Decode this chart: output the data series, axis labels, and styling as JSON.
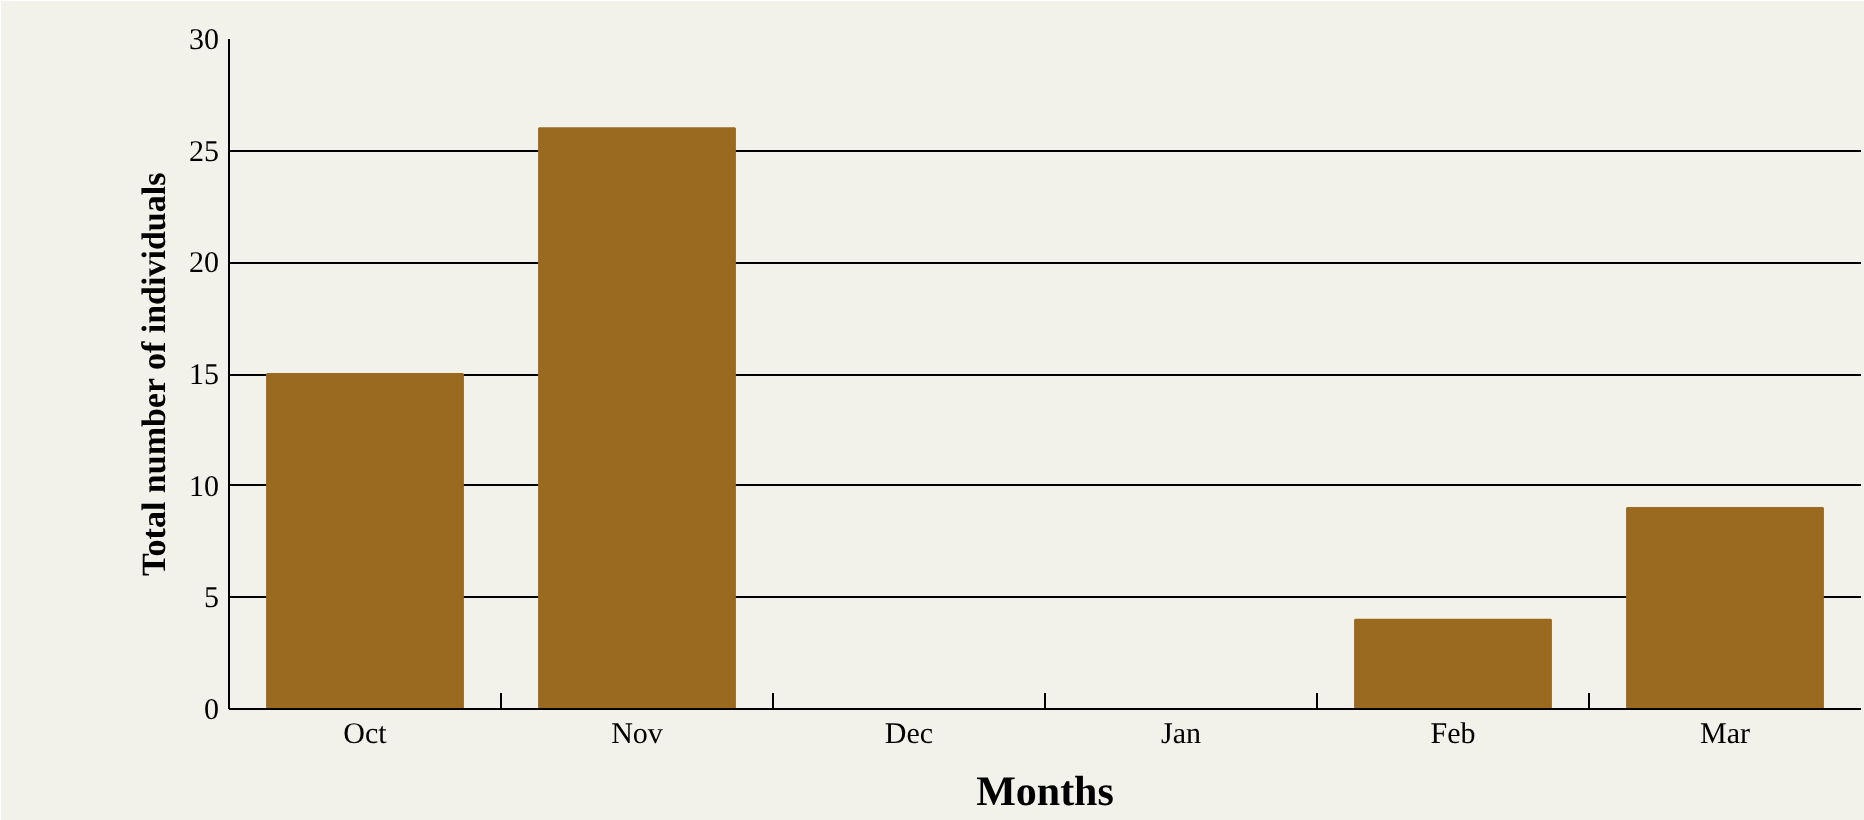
{
  "chart_data": {
    "type": "bar",
    "xlabel": "Months",
    "ylabel": "Total number of individuals",
    "categories": [
      "Oct",
      "Nov",
      "Dec",
      "Jan",
      "Feb",
      "Mar"
    ],
    "values": [
      15,
      26,
      0,
      0,
      4,
      9
    ],
    "color": "#996a1f",
    "ylim": [
      0,
      30
    ],
    "yticks": [
      0,
      5,
      10,
      15,
      20,
      25,
      30
    ],
    "grid": "y"
  }
}
